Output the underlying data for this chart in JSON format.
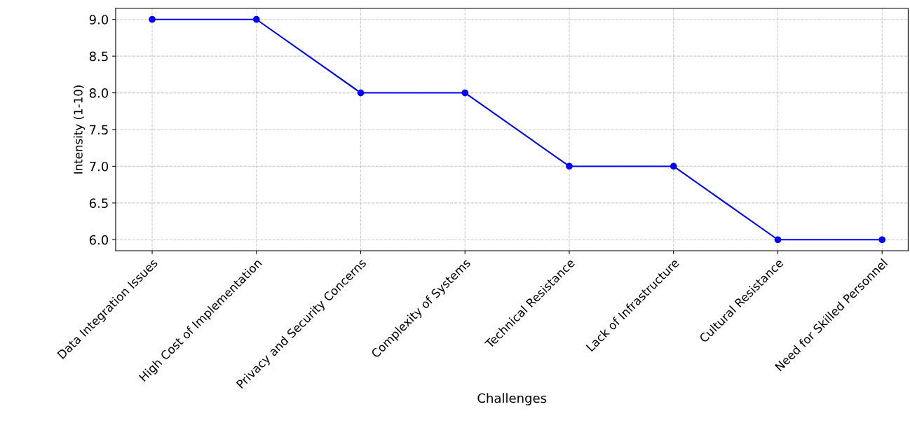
{
  "chart_data": {
    "type": "line",
    "xlabel": "Challenges",
    "ylabel": "Intensity (1-10)",
    "categories": [
      "Data Integration Issues",
      "High Cost of Implementation",
      "Privacy and Security Concerns",
      "Complexity of Systems",
      "Technical Resistance",
      "Lack of Infrastructure",
      "Cultural Resistance",
      "Need for Skilled Personnel"
    ],
    "series": [
      {
        "color": "#0000ff",
        "values": [
          9,
          9,
          8,
          8,
          7,
          7,
          6,
          6
        ]
      }
    ],
    "ylim": [
      5.85,
      9.15
    ],
    "yticks": [
      {
        "value": 6,
        "label": "6.0"
      },
      {
        "value": 6.5,
        "label": "6.5"
      },
      {
        "value": 7,
        "label": "7.0"
      },
      {
        "value": 7.5,
        "label": "7.5"
      },
      {
        "value": 8,
        "label": "8.0"
      },
      {
        "value": 8.5,
        "label": "8.5"
      },
      {
        "value": 9,
        "label": "9.0"
      }
    ],
    "grid": true,
    "marker": "circle",
    "line_style": "solid"
  }
}
